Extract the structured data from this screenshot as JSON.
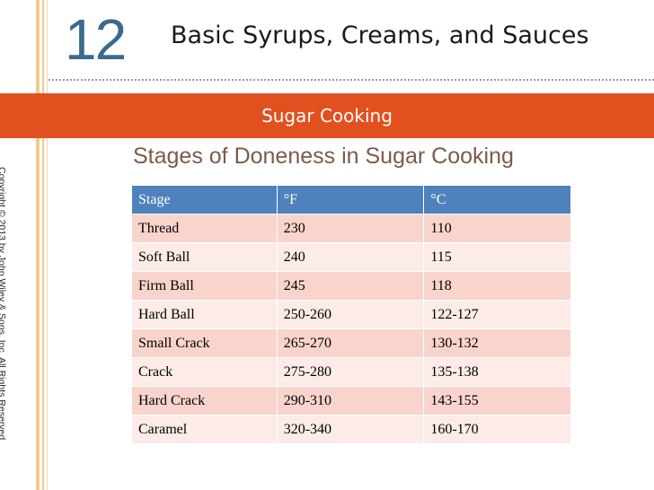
{
  "chapter": {
    "number": "12",
    "title": "Basic Syrups, Creams, and Sauces"
  },
  "section_title": "Sugar Cooking",
  "copyright": "Copyright © 2013 by John Wiley & Sons, Inc. All Rights Reserved",
  "heading": "Stages of Doneness in Sugar Cooking",
  "table": {
    "headers": [
      "Stage",
      "°F",
      "°C"
    ],
    "rows": [
      [
        "Thread",
        "230",
        "110"
      ],
      [
        "Soft Ball",
        "240",
        "115"
      ],
      [
        "Firm Ball",
        "245",
        "118"
      ],
      [
        "Hard Ball",
        "250-260",
        "122-127"
      ],
      [
        "Small Crack",
        "265-270",
        "130-132"
      ],
      [
        "Crack",
        "275-280",
        "135-138"
      ],
      [
        "Hard Crack",
        "290-310",
        "143-155"
      ],
      [
        "Caramel",
        "320-340",
        "160-170"
      ]
    ]
  },
  "colors": {
    "section_bar": "#e2501f",
    "chapter_number": "#3a6b8f",
    "heading": "#7d5b47",
    "table_header": "#4f81bd",
    "row_odd": "#f9d4cc",
    "row_even": "#fcebe7"
  }
}
